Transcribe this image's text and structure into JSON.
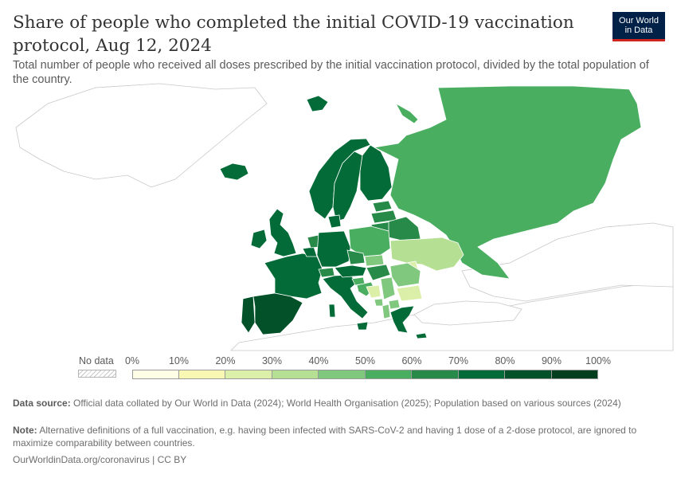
{
  "header": {
    "title": "Share of people who completed the initial COVID-19 vaccination protocol, Aug 12, 2024",
    "subtitle": "Total number of people who received all doses prescribed by the initial vaccination protocol, divided by the total population of the country."
  },
  "logo": {
    "line1": "Our World",
    "line2": "in Data"
  },
  "legend": {
    "no_data_label": "No data",
    "ticks": [
      "0%",
      "10%",
      "20%",
      "30%",
      "40%",
      "50%",
      "60%",
      "70%",
      "80%",
      "90%",
      "100%"
    ],
    "colors": [
      "#fefde6",
      "#f8f8b4",
      "#dcefa8",
      "#b5df93",
      "#7fc87d",
      "#4aae61",
      "#278a48",
      "#036b37",
      "#025129",
      "#013e1f"
    ]
  },
  "chart_data": {
    "type": "choropleth",
    "title": "Share of people who completed the initial COVID-19 vaccination protocol, Aug 12, 2024",
    "legend_bins": [
      {
        "range": "0%–10%",
        "color": "#fefde6"
      },
      {
        "range": "10%–20%",
        "color": "#f8f8b4"
      },
      {
        "range": "20%–30%",
        "color": "#dcefa8"
      },
      {
        "range": "30%–40%",
        "color": "#b5df93"
      },
      {
        "range": "40%–50%",
        "color": "#7fc87d"
      },
      {
        "range": "50%–60%",
        "color": "#4aae61"
      },
      {
        "range": "60%–70%",
        "color": "#278a48"
      },
      {
        "range": "70%–80%",
        "color": "#036b37"
      },
      {
        "range": "80%–90%",
        "color": "#025129"
      },
      {
        "range": "90%–100%",
        "color": "#013e1f"
      }
    ],
    "regions": [
      {
        "name": "Russia",
        "bin": "50%–60%"
      },
      {
        "name": "Ukraine",
        "bin": "30%–40%"
      },
      {
        "name": "Belarus",
        "bin": "60%–70%"
      },
      {
        "name": "Finland",
        "bin": "70%–80%"
      },
      {
        "name": "Sweden",
        "bin": "70%–80%"
      },
      {
        "name": "Norway",
        "bin": "70%–80%"
      },
      {
        "name": "Estonia",
        "bin": "60%–70%"
      },
      {
        "name": "Latvia",
        "bin": "60%–70%"
      },
      {
        "name": "Lithuania",
        "bin": "60%–70%"
      },
      {
        "name": "Poland",
        "bin": "50%–60%"
      },
      {
        "name": "Germany",
        "bin": "70%–80%"
      },
      {
        "name": "France",
        "bin": "70%–80%"
      },
      {
        "name": "Spain",
        "bin": "80%–90%"
      },
      {
        "name": "Portugal",
        "bin": "80%–90%"
      },
      {
        "name": "Italy",
        "bin": "70%–80%"
      },
      {
        "name": "United Kingdom",
        "bin": "70%–80%"
      },
      {
        "name": "Ireland",
        "bin": "70%–80%"
      },
      {
        "name": "Iceland",
        "bin": "70%–80%"
      },
      {
        "name": "Netherlands",
        "bin": "60%–70%"
      },
      {
        "name": "Belgium",
        "bin": "70%–80%"
      },
      {
        "name": "Denmark",
        "bin": "70%–80%"
      },
      {
        "name": "Czechia",
        "bin": "60%–70%"
      },
      {
        "name": "Slovakia",
        "bin": "40%–50%"
      },
      {
        "name": "Austria",
        "bin": "70%–80%"
      },
      {
        "name": "Switzerland",
        "bin": "60%–70%"
      },
      {
        "name": "Hungary",
        "bin": "60%–70%"
      },
      {
        "name": "Slovenia",
        "bin": "50%–60%"
      },
      {
        "name": "Croatia",
        "bin": "50%–60%"
      },
      {
        "name": "Bosnia and Herzegovina",
        "bin": "20%–30%"
      },
      {
        "name": "Serbia",
        "bin": "40%–50%"
      },
      {
        "name": "Romania",
        "bin": "40%–50%"
      },
      {
        "name": "Moldova",
        "bin": "20%–30%"
      },
      {
        "name": "Bulgaria",
        "bin": "20%–30%"
      },
      {
        "name": "Greece",
        "bin": "70%–80%"
      },
      {
        "name": "Albania",
        "bin": "40%–50%"
      },
      {
        "name": "North Macedonia",
        "bin": "40%–50%"
      },
      {
        "name": "Montenegro",
        "bin": "40%–50%"
      },
      {
        "name": "Cyprus",
        "bin": "70%–80%"
      },
      {
        "name": "Svalbard",
        "bin": "70%–80%"
      }
    ]
  },
  "footer": {
    "source_label": "Data source:",
    "source_text": "Official data collated by Our World in Data (2024); World Health Organisation (2025); Population based on various sources (2024)",
    "note_label": "Note:",
    "note_text": "Alternative definitions of a full vaccination, e.g. having been infected with SARS-CoV-2 and having 1 dose of a 2-dose protocol, are ignored to maximize comparability between countries.",
    "url_text": "OurWorldinData.org/coronavirus | CC BY"
  }
}
